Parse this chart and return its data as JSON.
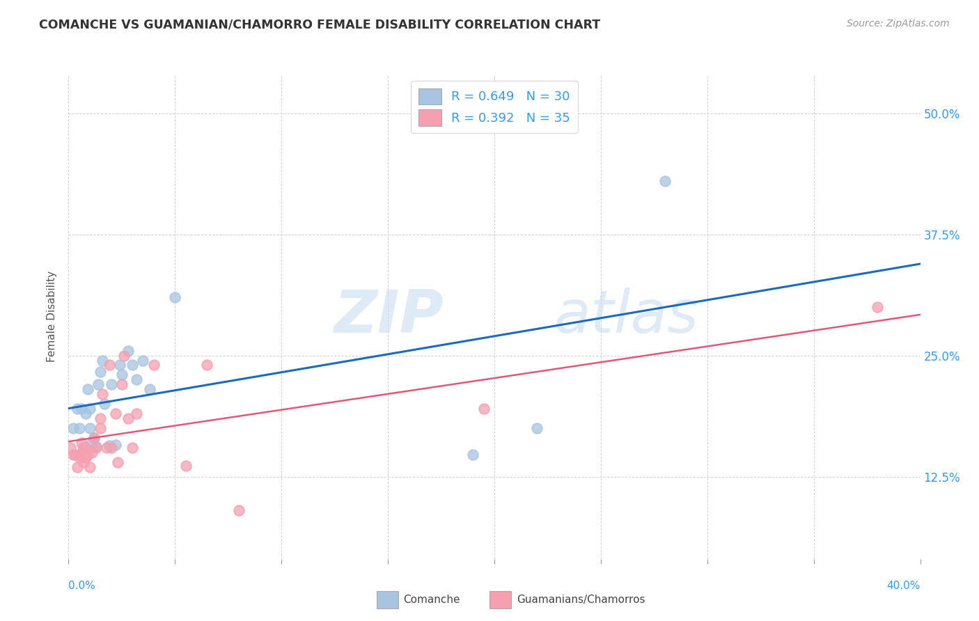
{
  "title": "COMANCHE VS GUAMANIAN/CHAMORRO FEMALE DISABILITY CORRELATION CHART",
  "source": "Source: ZipAtlas.com",
  "ylabel": "Female Disability",
  "y_ticks": [
    "12.5%",
    "25.0%",
    "37.5%",
    "50.0%"
  ],
  "y_tick_vals": [
    0.125,
    0.25,
    0.375,
    0.5
  ],
  "xlim": [
    0.0,
    0.4
  ],
  "ylim": [
    0.04,
    0.54
  ],
  "legend_r1": "R = 0.649",
  "legend_n1": "N = 30",
  "legend_r2": "R = 0.392",
  "legend_n2": "N = 35",
  "comanche_color": "#a8c4e0",
  "guam_color": "#f4a0b0",
  "trend_blue": "#1a6abf",
  "trend_pink": "#e05878",
  "watermark_zip": "ZIP",
  "watermark_atlas": "atlas",
  "comanche_x": [
    0.002,
    0.004,
    0.005,
    0.006,
    0.007,
    0.008,
    0.009,
    0.01,
    0.01,
    0.011,
    0.012,
    0.013,
    0.014,
    0.015,
    0.016,
    0.017,
    0.019,
    0.02,
    0.022,
    0.024,
    0.025,
    0.028,
    0.03,
    0.032,
    0.035,
    0.038,
    0.05,
    0.19,
    0.22,
    0.28
  ],
  "comanche_y": [
    0.175,
    0.195,
    0.175,
    0.195,
    0.155,
    0.19,
    0.215,
    0.175,
    0.195,
    0.16,
    0.165,
    0.156,
    0.22,
    0.233,
    0.245,
    0.2,
    0.157,
    0.22,
    0.158,
    0.24,
    0.23,
    0.255,
    0.24,
    0.225,
    0.245,
    0.215,
    0.31,
    0.148,
    0.175,
    0.43
  ],
  "guam_x": [
    0.001,
    0.002,
    0.003,
    0.004,
    0.005,
    0.005,
    0.006,
    0.007,
    0.007,
    0.008,
    0.008,
    0.009,
    0.01,
    0.011,
    0.012,
    0.013,
    0.015,
    0.015,
    0.016,
    0.018,
    0.019,
    0.02,
    0.022,
    0.023,
    0.025,
    0.026,
    0.028,
    0.03,
    0.032,
    0.04,
    0.055,
    0.065,
    0.08,
    0.195,
    0.38
  ],
  "guam_y": [
    0.155,
    0.148,
    0.148,
    0.135,
    0.145,
    0.148,
    0.16,
    0.14,
    0.155,
    0.155,
    0.145,
    0.148,
    0.135,
    0.15,
    0.165,
    0.155,
    0.175,
    0.185,
    0.21,
    0.155,
    0.24,
    0.155,
    0.19,
    0.14,
    0.22,
    0.25,
    0.185,
    0.155,
    0.19,
    0.24,
    0.136,
    0.24,
    0.09,
    0.195,
    0.3
  ]
}
